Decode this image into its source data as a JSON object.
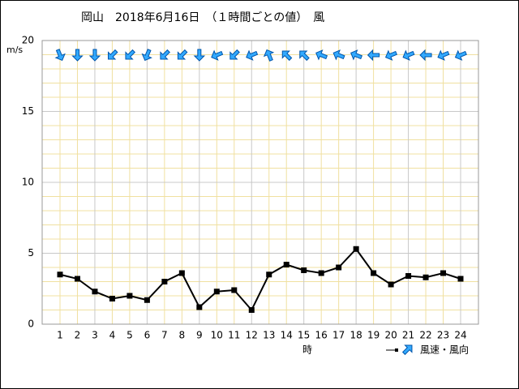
{
  "chart_data": {
    "type": "line",
    "title": "岡山　2018年6月16日　（１時間ごとの値）　風",
    "y_label": "m/s",
    "x_label": "時",
    "legend_label": "風速・風向",
    "categories": [
      1,
      2,
      3,
      4,
      5,
      6,
      7,
      8,
      9,
      10,
      11,
      12,
      13,
      14,
      15,
      16,
      17,
      18,
      19,
      20,
      21,
      22,
      23,
      24
    ],
    "values": [
      3.5,
      3.2,
      2.3,
      1.8,
      2.0,
      1.7,
      3.0,
      3.6,
      1.2,
      2.3,
      2.4,
      1.0,
      3.5,
      4.2,
      3.8,
      3.6,
      4.0,
      5.3,
      3.6,
      2.8,
      3.4,
      3.3,
      3.6,
      3.2
    ],
    "directions": [
      337.5,
      0,
      0,
      45,
      45,
      22.5,
      45,
      45,
      0,
      67.5,
      45,
      67.5,
      157.5,
      135,
      135,
      112.5,
      112.5,
      112.5,
      90,
      67.5,
      67.5,
      90,
      67.5,
      67.5
    ],
    "color": "#000000",
    "arrow_color": "#33aaff",
    "ylim": [
      0,
      20
    ],
    "yticks": [
      0,
      5,
      10,
      15,
      20
    ],
    "grid": true
  }
}
